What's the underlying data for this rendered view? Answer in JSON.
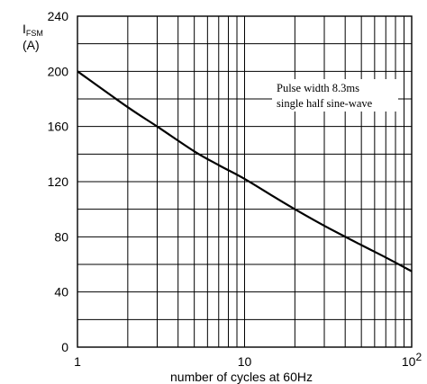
{
  "chart_data": {
    "type": "line",
    "x_scale": "log",
    "xlim": [
      1,
      100
    ],
    "ylim": [
      0,
      240
    ],
    "grid": true,
    "x_ticks": [
      {
        "value": 1,
        "label": "1"
      },
      {
        "value": 10,
        "label": "10"
      },
      {
        "value": 100,
        "label": "10",
        "sup": "2"
      }
    ],
    "y_ticks": [
      {
        "value": 0,
        "label": "0"
      },
      {
        "value": 40,
        "label": "40"
      },
      {
        "value": 80,
        "label": "80"
      },
      {
        "value": 120,
        "label": "120"
      },
      {
        "value": 160,
        "label": "160"
      },
      {
        "value": 200,
        "label": "200"
      },
      {
        "value": 240,
        "label": "240"
      }
    ],
    "y_minor_ticks": [
      20,
      60,
      100,
      140,
      180,
      220
    ],
    "ylabel_main": "I",
    "ylabel_sub": "FSM",
    "ylabel_unit": "(A)",
    "xlabel": "number of cycles at 60Hz",
    "annotation": [
      "Pulse width 8.3ms",
      "single half sine-wave"
    ],
    "series": [
      {
        "x": [
          1,
          2,
          3,
          5,
          7,
          10,
          15,
          20,
          30,
          50,
          70,
          100
        ],
        "y": [
          200,
          174,
          160,
          142,
          132,
          122,
          109,
          100,
          88,
          74,
          65,
          55
        ]
      }
    ]
  }
}
